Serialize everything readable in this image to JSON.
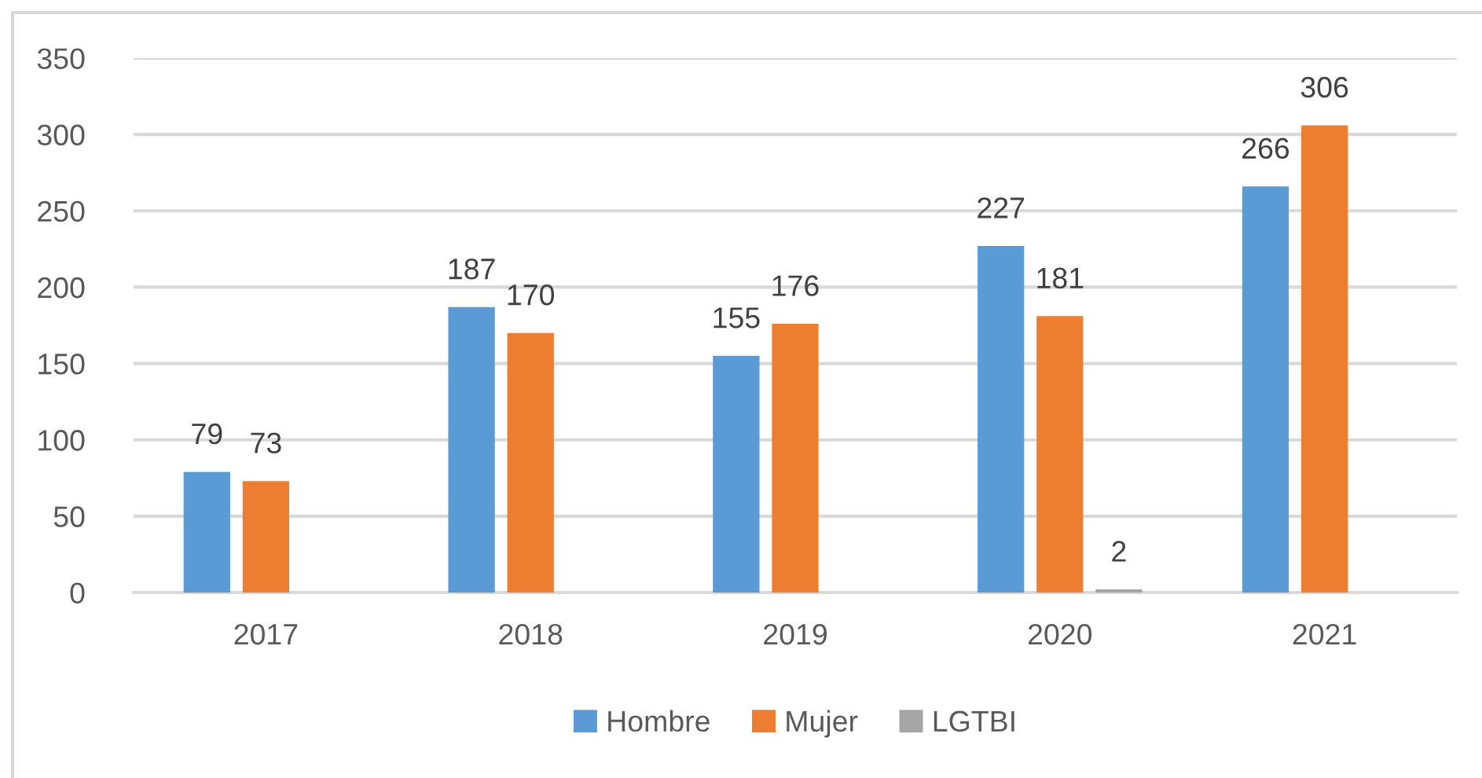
{
  "chart_data": {
    "type": "bar",
    "categories": [
      "2017",
      "2018",
      "2019",
      "2020",
      "2021"
    ],
    "series": [
      {
        "name": "Hombre",
        "color": "#5b9bd5",
        "values": [
          79,
          187,
          155,
          227,
          266
        ]
      },
      {
        "name": "Mujer",
        "color": "#ed7d31",
        "values": [
          73,
          170,
          176,
          181,
          306
        ]
      },
      {
        "name": "LGTBI",
        "color": "#a5a5a5",
        "values": [
          null,
          null,
          null,
          2,
          null
        ]
      }
    ],
    "ylim": [
      0,
      350
    ],
    "yticks": [
      0,
      50,
      100,
      150,
      200,
      250,
      300,
      350
    ],
    "grid": "y",
    "legend": "bottom",
    "data_labels": true
  }
}
